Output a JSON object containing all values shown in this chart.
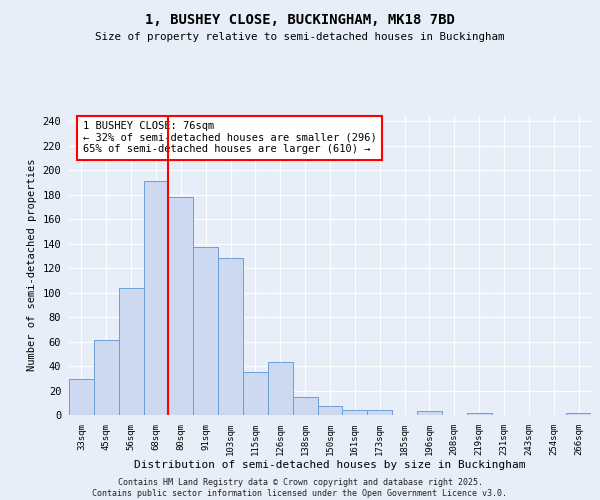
{
  "title1": "1, BUSHEY CLOSE, BUCKINGHAM, MK18 7BD",
  "title2": "Size of property relative to semi-detached houses in Buckingham",
  "xlabel": "Distribution of semi-detached houses by size in Buckingham",
  "ylabel": "Number of semi-detached properties",
  "bar_labels": [
    "33sqm",
    "45sqm",
    "56sqm",
    "68sqm",
    "80sqm",
    "91sqm",
    "103sqm",
    "115sqm",
    "126sqm",
    "138sqm",
    "150sqm",
    "161sqm",
    "173sqm",
    "185sqm",
    "196sqm",
    "208sqm",
    "219sqm",
    "231sqm",
    "243sqm",
    "254sqm",
    "266sqm"
  ],
  "bar_values": [
    29,
    61,
    104,
    191,
    178,
    137,
    128,
    35,
    43,
    15,
    7,
    4,
    4,
    0,
    3,
    0,
    2,
    0,
    0,
    0,
    2
  ],
  "bar_color": "#ccd9f0",
  "bar_edge_color": "#6b9fd4",
  "vline_x": 3.5,
  "vline_color": "red",
  "annotation_text": "1 BUSHEY CLOSE: 76sqm\n← 32% of semi-detached houses are smaller (296)\n65% of semi-detached houses are larger (610) →",
  "annotation_box_color": "white",
  "annotation_box_edge": "red",
  "ylim": [
    0,
    245
  ],
  "yticks": [
    0,
    20,
    40,
    60,
    80,
    100,
    120,
    140,
    160,
    180,
    200,
    220,
    240
  ],
  "bg_color": "#e8eef8",
  "grid_color": "white",
  "footer": "Contains HM Land Registry data © Crown copyright and database right 2025.\nContains public sector information licensed under the Open Government Licence v3.0."
}
